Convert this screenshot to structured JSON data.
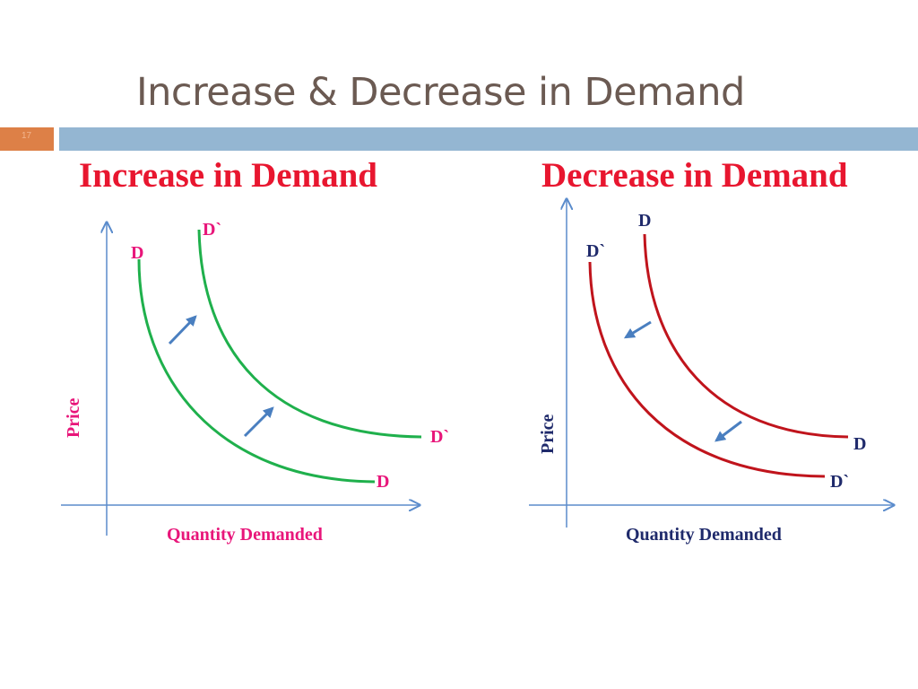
{
  "slide": {
    "title": "Increase & Decrease in Demand",
    "number": "17"
  },
  "panels": [
    {
      "heading": "Increase in Demand",
      "y_axis_label": "Price",
      "x_axis_label": "Quantity Demanded",
      "curve_original": {
        "label_top": "D",
        "label_end": "D",
        "color": "#1fb04c"
      },
      "curve_shifted": {
        "label_top": "D`",
        "label_end": "D`",
        "color": "#1fb04c"
      },
      "shift_direction": "up-right",
      "label_color": "#e8167a"
    },
    {
      "heading": "Decrease in Demand",
      "y_axis_label": "Price",
      "x_axis_label": "Quantity Demanded",
      "curve_original": {
        "label_top": "D",
        "label_end": "D",
        "color": "#c0141c"
      },
      "curve_shifted": {
        "label_top": "D`",
        "label_end": "D`",
        "color": "#c0141c"
      },
      "shift_direction": "down-left",
      "label_color": "#1f2a6b"
    }
  ],
  "colors": {
    "heading": "#e8162f",
    "title": "#6b5a52",
    "band": "#94b6d2",
    "number_box": "#dd8047",
    "axis": "#5b8ccc",
    "arrow": "#4a7fc0"
  }
}
